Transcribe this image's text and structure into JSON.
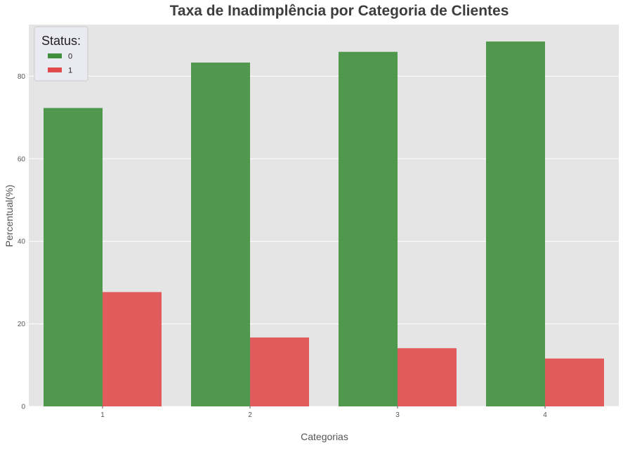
{
  "chart_data": {
    "type": "bar",
    "title": "Taxa de Inadimplência por Categoria de Clientes",
    "xlabel": "Categorias",
    "ylabel": "Percentual(%)",
    "categories": [
      "1",
      "2",
      "3",
      "4"
    ],
    "series": [
      {
        "name": "0",
        "values": [
          72.3,
          83.3,
          85.9,
          88.4
        ],
        "color": "#3f8f3c"
      },
      {
        "name": "1",
        "values": [
          27.7,
          16.7,
          14.1,
          11.6
        ],
        "color": "#e04a4c"
      }
    ],
    "ylim": [
      0,
      92.5
    ],
    "yticks": [
      0,
      20,
      40,
      60,
      80
    ],
    "grid": true,
    "legend": {
      "title": "Status:",
      "placement": "top-left"
    },
    "background_color": "#e5e5e5",
    "grid_color": "#ffffff"
  }
}
